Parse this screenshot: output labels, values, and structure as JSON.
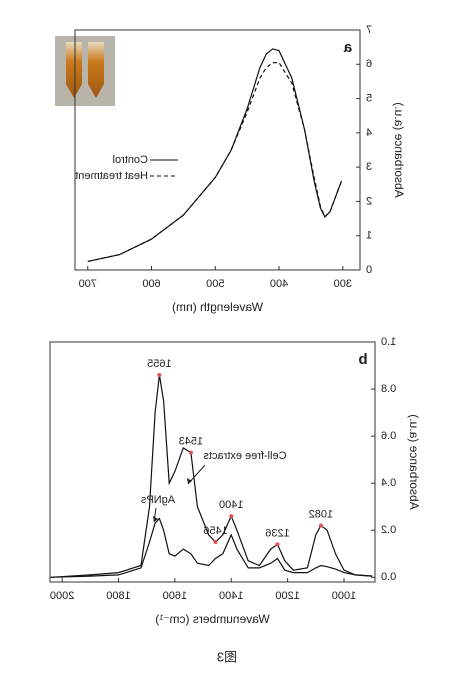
{
  "chart_data": [
    {
      "type": "line",
      "panel": "a",
      "x_label": "Wavelength (nm)",
      "y_label": "Absorbance (a.u.)",
      "xlim": [
        273,
        720
      ],
      "xticks": [
        300,
        400,
        500,
        600,
        700
      ],
      "ylim": [
        0,
        7
      ],
      "yticks": [
        0,
        1,
        2,
        3,
        4,
        5,
        6,
        7
      ],
      "x": [
        700,
        650,
        600,
        550,
        500,
        475,
        450,
        430,
        420,
        410,
        400,
        380,
        360,
        345,
        335,
        328,
        320,
        310,
        302
      ],
      "series": [
        {
          "name": "Control",
          "color": "#111111",
          "dashed": false,
          "values": [
            0.25,
            0.45,
            0.9,
            1.6,
            2.7,
            3.5,
            4.7,
            5.9,
            6.3,
            6.45,
            6.4,
            5.6,
            4.1,
            2.6,
            1.8,
            1.55,
            1.7,
            2.2,
            2.6
          ]
        },
        {
          "name": "Heat treatment",
          "color": "#111111",
          "dashed": true,
          "values": [
            0.25,
            0.45,
            0.9,
            1.6,
            2.7,
            3.5,
            4.6,
            5.6,
            5.9,
            6.05,
            6.05,
            5.45,
            4.1,
            2.7,
            1.85,
            1.55,
            1.7,
            2.2,
            2.6
          ]
        }
      ]
    },
    {
      "type": "line",
      "panel": "b",
      "x_label": "Wavenumbers (cm⁻¹)",
      "y_label": "Absorbance (a.u.)",
      "xlim": [
        890,
        2043
      ],
      "xticks": [
        1000,
        1200,
        1400,
        1600,
        1800,
        2000
      ],
      "ylim": [
        -0.02,
        1.0
      ],
      "yticks": [
        {
          "value": 0,
          "label": "0.0"
        },
        0.2,
        0.4,
        0.6,
        0.8,
        {
          "value": 1.0,
          "label": "1.0"
        }
      ],
      "x": [
        2040,
        1900,
        1800,
        1720,
        1690,
        1670,
        1655,
        1640,
        1620,
        1600,
        1570,
        1543,
        1520,
        1480,
        1456,
        1430,
        1400,
        1380,
        1340,
        1300,
        1260,
        1236,
        1210,
        1180,
        1130,
        1100,
        1082,
        1060,
        1030,
        1000,
        960,
        900
      ],
      "series": [
        {
          "name": "Cell-free extracts",
          "color": "#111111",
          "dashed": false,
          "values": [
            0.0,
            0.01,
            0.02,
            0.05,
            0.3,
            0.7,
            0.86,
            0.75,
            0.4,
            0.45,
            0.55,
            0.53,
            0.3,
            0.18,
            0.15,
            0.18,
            0.26,
            0.2,
            0.07,
            0.05,
            0.12,
            0.14,
            0.07,
            0.03,
            0.04,
            0.18,
            0.22,
            0.2,
            0.1,
            0.03,
            0.01,
            0.005
          ]
        },
        {
          "name": "AgNPs",
          "color": "#111111",
          "dashed": false,
          "values": [
            0.0,
            0.005,
            0.01,
            0.04,
            0.15,
            0.23,
            0.25,
            0.2,
            0.1,
            0.09,
            0.12,
            0.1,
            0.06,
            0.05,
            0.08,
            0.1,
            0.18,
            0.12,
            0.04,
            0.04,
            0.06,
            0.08,
            0.03,
            0.02,
            0.02,
            0.04,
            0.05,
            0.045,
            0.035,
            0.02,
            0.01,
            0.005
          ]
        }
      ],
      "peaks": [
        {
          "x": 1655,
          "y": 0.86
        },
        {
          "x": 1543,
          "y": 0.53
        },
        {
          "x": 1456,
          "y": 0.15
        },
        {
          "x": 1400,
          "y": 0.26
        },
        {
          "x": 1236,
          "y": 0.14
        },
        {
          "x": 1082,
          "y": 0.22
        }
      ],
      "peak_color": "#e05050"
    }
  ],
  "caption": "图3"
}
